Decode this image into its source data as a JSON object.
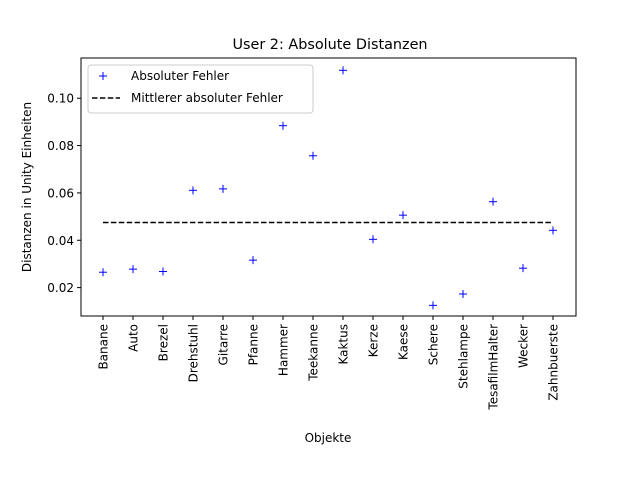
{
  "chart_data": {
    "type": "scatter",
    "title": "User 2: Absolute Distanzen",
    "xlabel": "Objekte",
    "ylabel": "Distanzen in Unity Einheiten",
    "categories": [
      "Banane",
      "Auto",
      "Brezel",
      "Drehstuhl",
      "Gitarre",
      "Pfanne",
      "Hammer",
      "Teekanne",
      "Kaktus",
      "Kerze",
      "Kaese",
      "Schere",
      "Stehlampe",
      "TesafilmHalter",
      "Wecker",
      "Zahnbuerste"
    ],
    "ylim": [
      0.008,
      0.117
    ],
    "yticks": [
      0.02,
      0.04,
      0.06,
      0.08,
      0.1
    ],
    "ytick_labels": [
      "0.02",
      "0.04",
      "0.06",
      "0.08",
      "0.10"
    ],
    "grid": false,
    "legend_position": "upper-left",
    "series": [
      {
        "name": "Absoluter Fehler",
        "marker": "+",
        "color": "#0000ff",
        "values": [
          0.0265,
          0.0278,
          0.0268,
          0.0611,
          0.0617,
          0.0316,
          0.0884,
          0.0757,
          0.1118,
          0.0404,
          0.0506,
          0.0125,
          0.0173,
          0.0563,
          0.0282,
          0.0442
        ]
      },
      {
        "name": "Mittlerer absoluter Fehler",
        "style": "dashed",
        "color": "#000000",
        "value": 0.0475
      }
    ]
  }
}
